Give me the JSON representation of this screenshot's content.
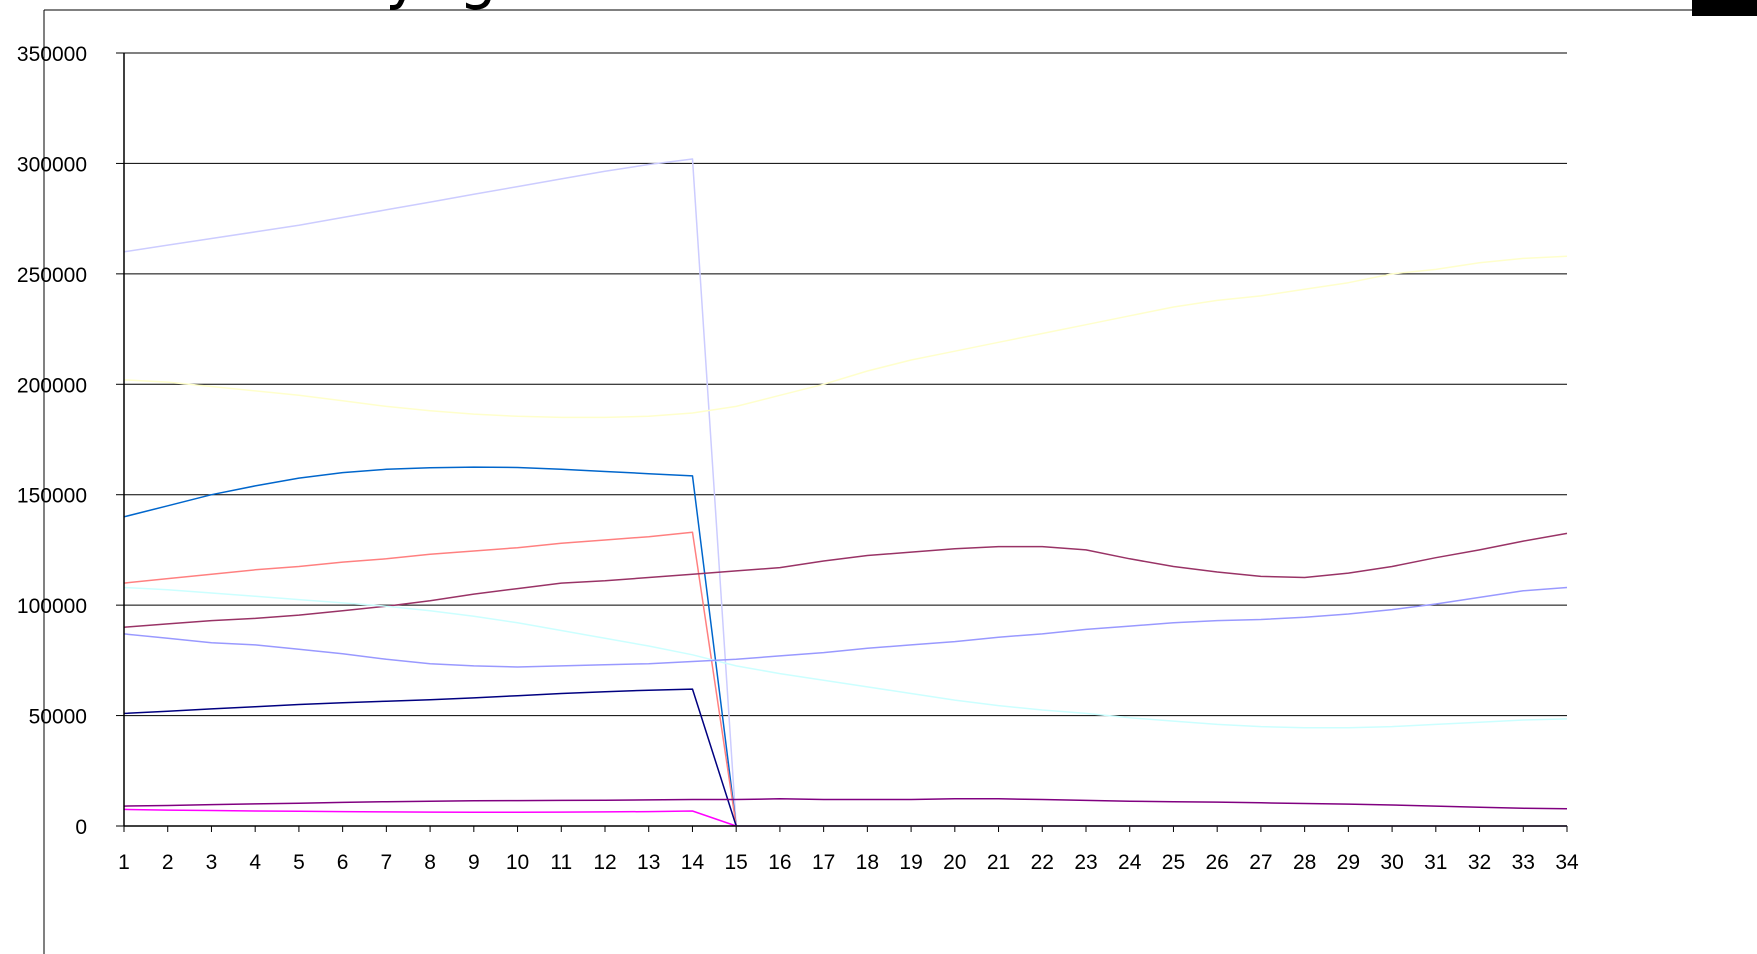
{
  "chart_data": {
    "type": "line",
    "title": "Flere yngre – færre ældre",
    "xlabel": "",
    "ylabel": "",
    "ylim": [
      0,
      350000
    ],
    "yticks": [
      0,
      50000,
      100000,
      150000,
      200000,
      250000,
      300000,
      350000
    ],
    "grid": true,
    "legend": "none",
    "x": [
      1,
      2,
      3,
      4,
      5,
      6,
      7,
      8,
      9,
      10,
      11,
      12,
      13,
      14,
      15,
      16,
      17,
      18,
      19,
      20,
      21,
      22,
      23,
      24,
      25,
      26,
      27,
      28,
      29,
      30,
      31,
      32,
      33,
      34
    ],
    "series": [
      {
        "color": "#ccccff",
        "values": [
          260000,
          263000,
          266000,
          269000,
          272000,
          275500,
          279000,
          282500,
          286000,
          289500,
          293000,
          296500,
          299500,
          302000,
          0,
          null,
          null,
          null,
          null,
          null,
          null,
          null,
          null,
          null,
          null,
          null,
          null,
          null,
          null,
          null,
          null,
          null,
          null,
          null
        ]
      },
      {
        "color": "#ffffcc",
        "values": [
          202000,
          201000,
          199000,
          197000,
          195000,
          192500,
          190000,
          188000,
          186500,
          185500,
          185000,
          185000,
          185500,
          187000,
          190000,
          195000,
          200000,
          206000,
          211000,
          215000,
          219000,
          223000,
          227000,
          231000,
          235000,
          238000,
          240000,
          243000,
          246000,
          250000,
          252000,
          255000,
          257000,
          258000
        ]
      },
      {
        "color": "#0066cc",
        "values": [
          140000,
          145000,
          150000,
          154000,
          157500,
          160000,
          161500,
          162200,
          162500,
          162300,
          161500,
          160500,
          159500,
          158500,
          0,
          null,
          null,
          null,
          null,
          null,
          null,
          null,
          null,
          null,
          null,
          null,
          null,
          null,
          null,
          null,
          null,
          null,
          null,
          null
        ]
      },
      {
        "color": "#ff8080",
        "values": [
          110000,
          112000,
          114000,
          116000,
          117500,
          119500,
          121000,
          123000,
          124500,
          126000,
          128000,
          129500,
          131000,
          133000,
          0,
          null,
          null,
          null,
          null,
          null,
          null,
          null,
          null,
          null,
          null,
          null,
          null,
          null,
          null,
          null,
          null,
          null,
          null,
          null
        ]
      },
      {
        "color": "#993366",
        "values": [
          90000,
          91500,
          93000,
          94000,
          95500,
          97500,
          99500,
          102000,
          105000,
          107500,
          110000,
          111000,
          112500,
          114000,
          115500,
          117000,
          120000,
          122500,
          124000,
          125500,
          126500,
          126500,
          125000,
          121000,
          117500,
          115000,
          113000,
          112500,
          114500,
          117500,
          121500,
          125000,
          129000,
          132500
        ]
      },
      {
        "color": "#ccffff",
        "values": [
          108000,
          107000,
          105500,
          104000,
          102500,
          101000,
          99500,
          97500,
          95000,
          92000,
          88500,
          85000,
          81500,
          77500,
          72500,
          69000,
          66000,
          63000,
          60000,
          57000,
          54500,
          52500,
          51000,
          49000,
          47500,
          46000,
          45000,
          44500,
          44500,
          45000,
          46000,
          47000,
          48000,
          48500
        ]
      },
      {
        "color": "#9999ff",
        "values": [
          87000,
          85000,
          83000,
          82000,
          80000,
          78000,
          75500,
          73500,
          72500,
          72000,
          72500,
          73000,
          73500,
          74500,
          75500,
          77000,
          78500,
          80500,
          82000,
          83500,
          85500,
          87000,
          89000,
          90500,
          92000,
          93000,
          93500,
          94500,
          96000,
          98000,
          100500,
          103500,
          106500,
          108000
        ]
      },
      {
        "color": "#000080",
        "values": [
          51000,
          52000,
          53000,
          54000,
          55000,
          55800,
          56500,
          57200,
          58000,
          59000,
          60000,
          60800,
          61500,
          62000,
          0,
          null,
          null,
          null,
          null,
          null,
          null,
          null,
          null,
          null,
          null,
          null,
          null,
          null,
          null,
          null,
          null,
          null,
          null,
          null
        ]
      },
      {
        "color": "#800080",
        "values": [
          9000,
          9300,
          9700,
          10000,
          10300,
          10700,
          11000,
          11200,
          11400,
          11500,
          11600,
          11700,
          11800,
          12000,
          12000,
          12300,
          12000,
          12000,
          12000,
          12300,
          12300,
          12000,
          11600,
          11200,
          11000,
          10800,
          10500,
          10200,
          9900,
          9500,
          9000,
          8500,
          8000,
          7800
        ]
      },
      {
        "color": "#ff00ff",
        "values": [
          7500,
          7200,
          7000,
          6800,
          6700,
          6500,
          6400,
          6300,
          6200,
          6200,
          6300,
          6400,
          6500,
          6800,
          0,
          null,
          null,
          null,
          null,
          null,
          null,
          null,
          null,
          null,
          null,
          null,
          null,
          null,
          null,
          null,
          null,
          null,
          null,
          null
        ]
      },
      {
        "color": "#cc99ff",
        "values": [
          null,
          null,
          null,
          null,
          null,
          null,
          null,
          null,
          null,
          null,
          null,
          null,
          null,
          null,
          0,
          0,
          0,
          0,
          0,
          0,
          0,
          0,
          0,
          0,
          0,
          0,
          0,
          0,
          0,
          0,
          0,
          0,
          0,
          0
        ]
      }
    ]
  }
}
